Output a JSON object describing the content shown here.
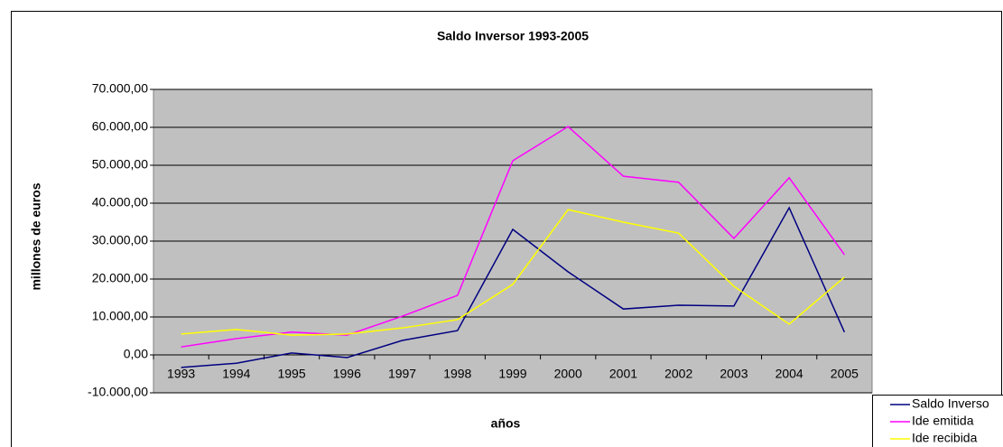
{
  "chart_data": {
    "type": "line",
    "title": "Saldo Inversor 1993-2005",
    "x_label": "años",
    "y_label": "millones de euros",
    "categories": [
      "1993",
      "1994",
      "1995",
      "1996",
      "1997",
      "1998",
      "1999",
      "2000",
      "2001",
      "2002",
      "2003",
      "2004",
      "2005"
    ],
    "series": [
      {
        "name": "Saldo Inverso",
        "color": "#000080",
        "values": [
          -3300,
          -2200,
          500,
          -700,
          3800,
          6400,
          33100,
          21900,
          12100,
          13100,
          12900,
          38800,
          6000
        ]
      },
      {
        "name": "Ide emitida",
        "color": "#ff00ff",
        "values": [
          2100,
          4300,
          6000,
          5200,
          10200,
          15700,
          51200,
          60200,
          47100,
          45500,
          30700,
          46700,
          26400
        ]
      },
      {
        "name": "Ide recibida",
        "color": "#ffff00",
        "values": [
          5500,
          6700,
          5200,
          5500,
          7100,
          9300,
          18600,
          38300,
          35000,
          32100,
          18100,
          8100,
          20500
        ]
      }
    ],
    "ylim": [
      -10000,
      70000
    ],
    "yticks": [
      {
        "value": -10000,
        "label": "-10.000,00"
      },
      {
        "value": 0,
        "label": "0,00"
      },
      {
        "value": 10000,
        "label": "10.000,00"
      },
      {
        "value": 20000,
        "label": "20.000,00"
      },
      {
        "value": 30000,
        "label": "30.000,00"
      },
      {
        "value": 40000,
        "label": "40.000,00"
      },
      {
        "value": 50000,
        "label": "50.000,00"
      },
      {
        "value": 60000,
        "label": "60.000,00"
      },
      {
        "value": 70000,
        "label": "70.000,00"
      }
    ],
    "grid": true,
    "legend": "bottom-right",
    "plot_background": "#c0c0c0"
  }
}
